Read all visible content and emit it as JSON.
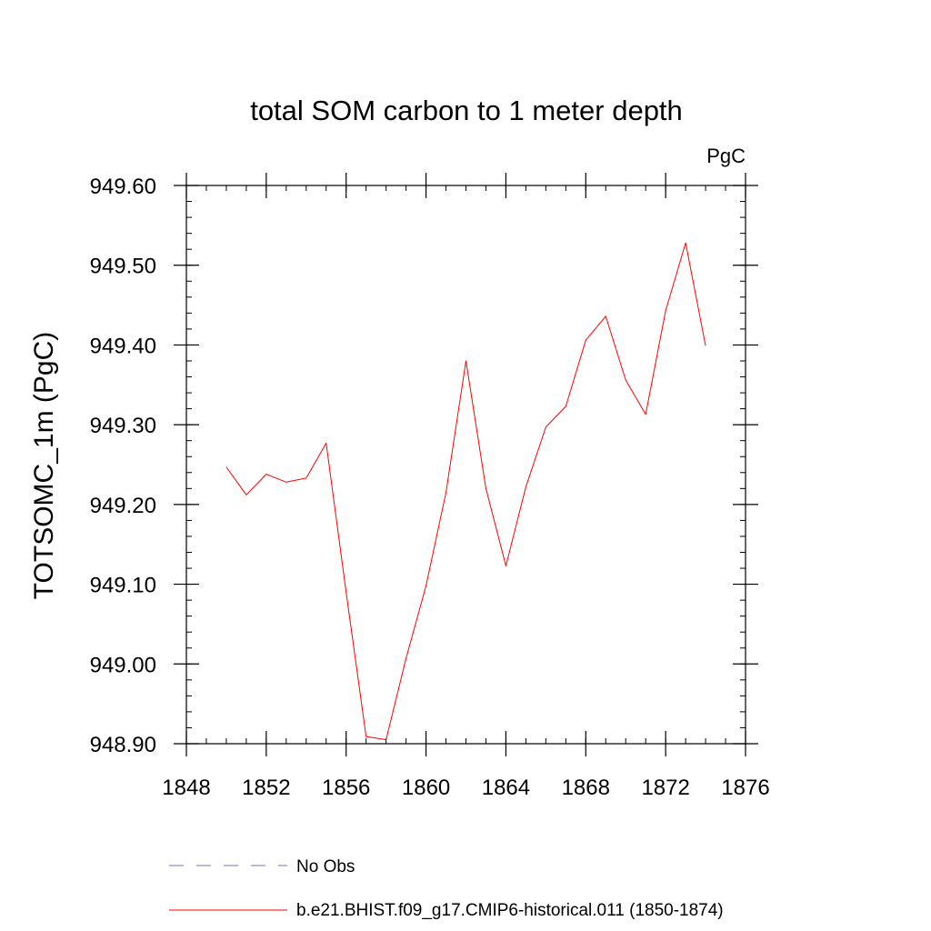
{
  "chart_data": {
    "type": "line",
    "title": "total SOM carbon to 1 meter depth",
    "units_label": "PgC",
    "xlabel": "",
    "ylabel": "TOTSOMC_1m  (PgC)",
    "xlim": [
      1848,
      1876
    ],
    "ylim": [
      948.9,
      949.6
    ],
    "x_ticks": [
      1848,
      1852,
      1856,
      1860,
      1864,
      1868,
      1872,
      1876
    ],
    "x_tick_labels": [
      "1848",
      "1852",
      "1856",
      "1860",
      "1864",
      "1868",
      "1872",
      "1876"
    ],
    "y_ticks": [
      948.9,
      949.0,
      949.1,
      949.2,
      949.3,
      949.4,
      949.5,
      949.6
    ],
    "y_tick_labels": [
      "948.90",
      "949.00",
      "949.10",
      "949.20",
      "949.30",
      "949.40",
      "949.50",
      "949.60"
    ],
    "grid": false,
    "legend_position": "bottom",
    "series": [
      {
        "name": "b.e21.BHIST.f09_g17.CMIP6-historical.011 (1850-1874)",
        "color": "#ff0000",
        "style": "solid",
        "x": [
          1850,
          1851,
          1852,
          1853,
          1854,
          1855,
          1856,
          1857,
          1858,
          1859,
          1860,
          1861,
          1862,
          1863,
          1864,
          1865,
          1866,
          1867,
          1868,
          1869,
          1870,
          1871,
          1872,
          1873,
          1874
        ],
        "y": [
          949.247,
          949.212,
          949.238,
          949.228,
          949.233,
          949.277,
          949.09,
          948.909,
          948.905,
          949.007,
          949.098,
          949.215,
          949.38,
          949.22,
          949.123,
          949.222,
          949.297,
          949.323,
          949.406,
          949.436,
          949.356,
          949.313,
          949.443,
          949.528,
          949.399
        ]
      }
    ],
    "legend": [
      {
        "label": "No Obs",
        "color": "#7b6fb5",
        "style": "dashed"
      },
      {
        "label": "b.e21.BHIST.f09_g17.CMIP6-historical.011 (1850-1874)",
        "color": "#ff0000",
        "style": "solid"
      }
    ]
  }
}
